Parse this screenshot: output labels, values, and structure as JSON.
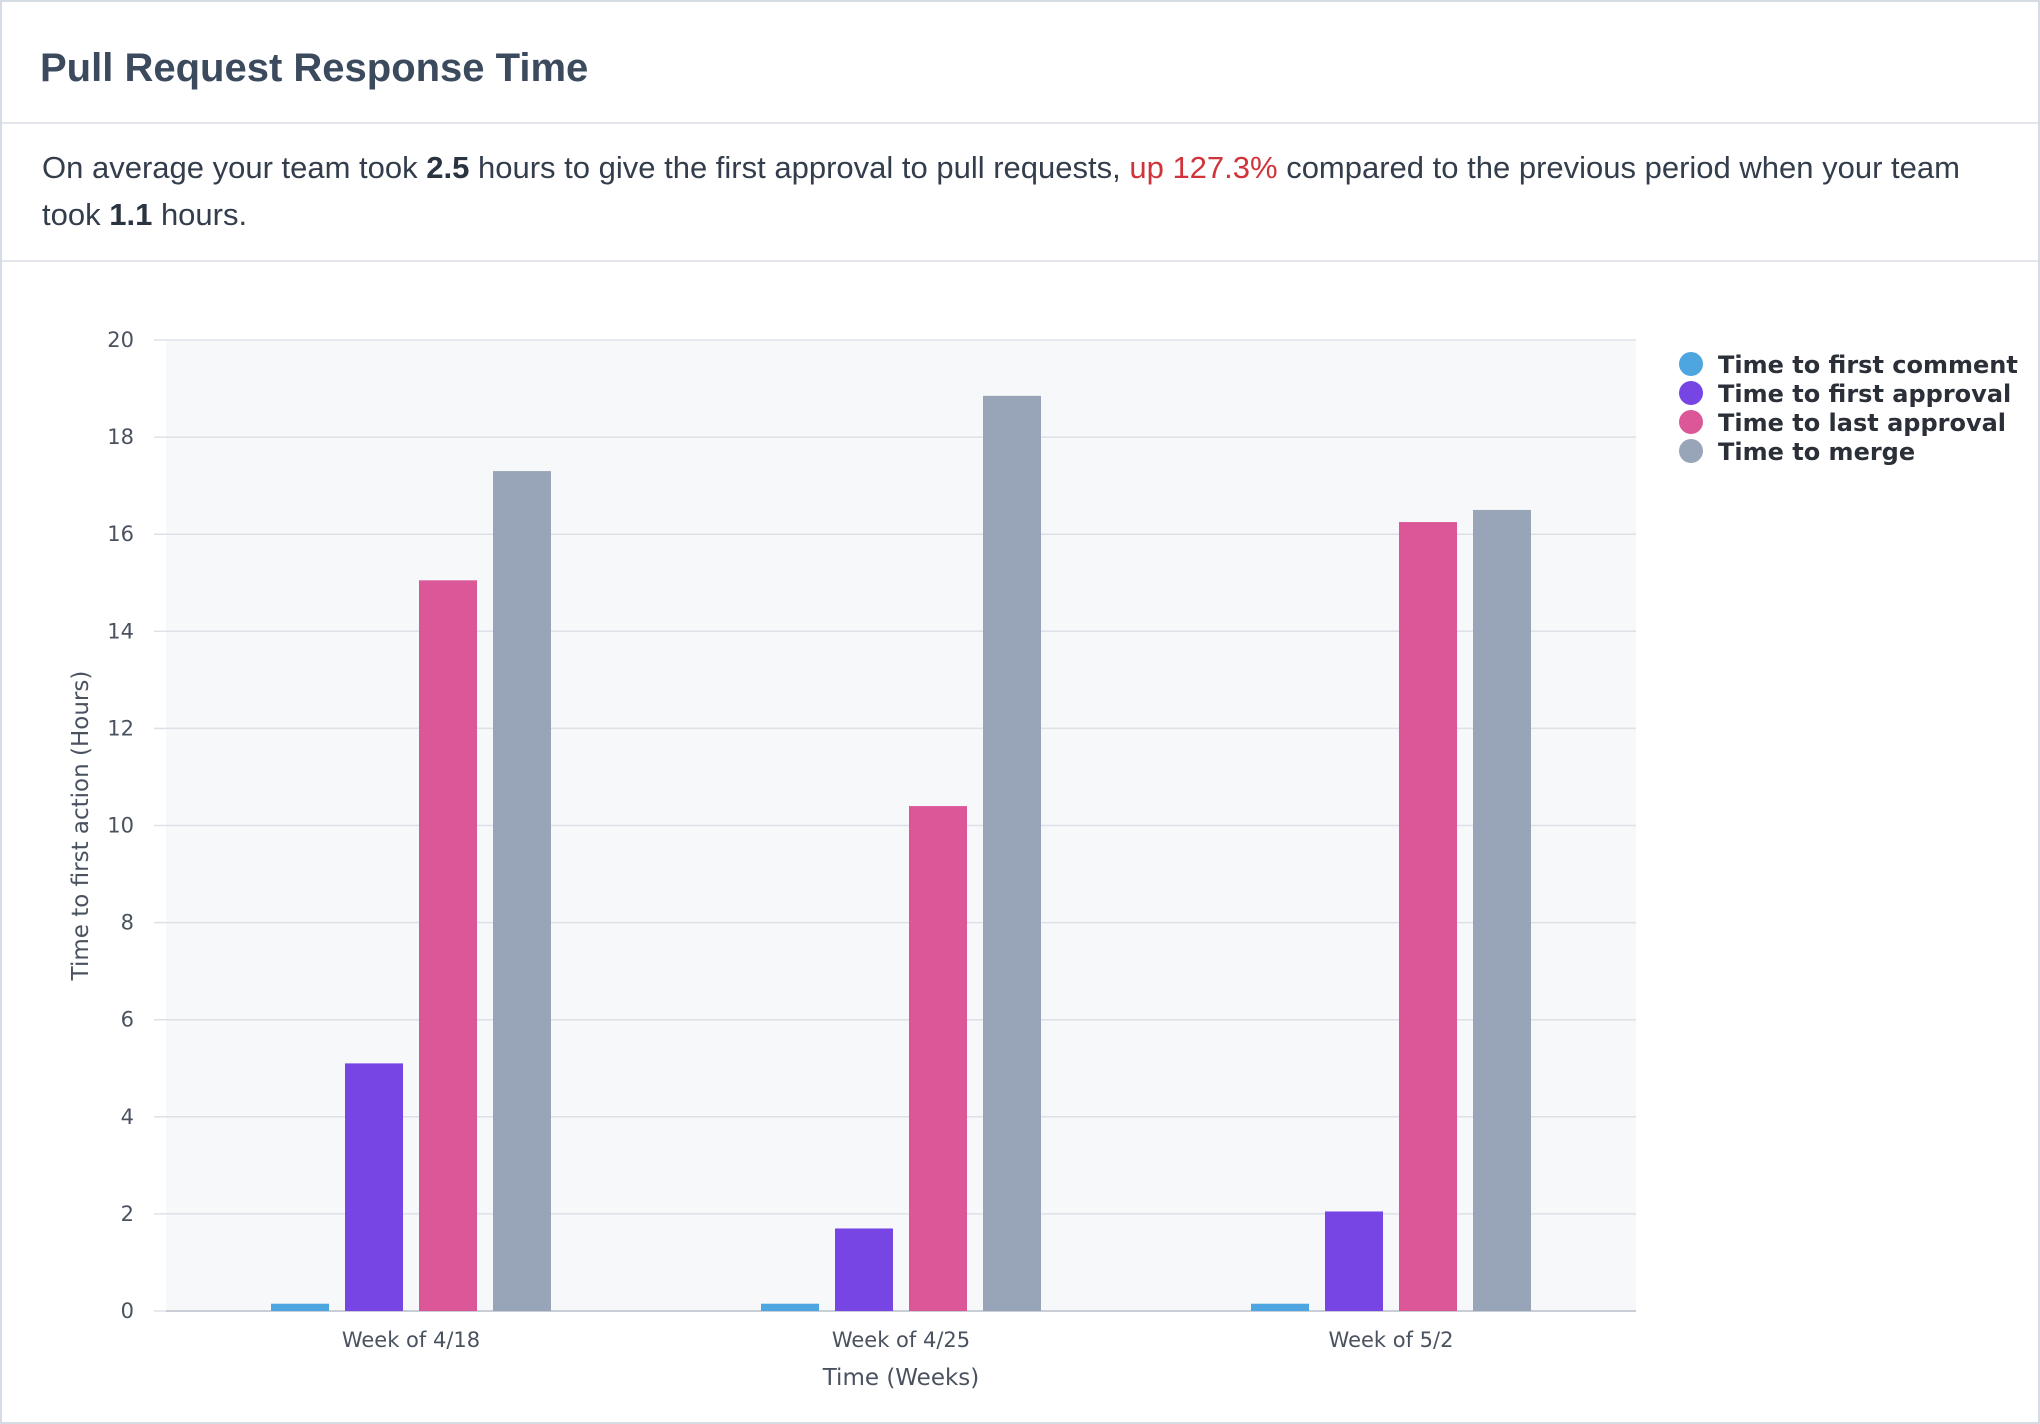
{
  "card": {
    "title": "Pull Request Response Time",
    "summary": {
      "t1": "On average your team took ",
      "current": "2.5",
      "t2": " hours to give the first approval to pull requests, ",
      "change": "up 127.3%",
      "t3": " compared to the previous period when your team took ",
      "previous": "1.1",
      "t4": " hours."
    }
  },
  "chart_data": {
    "type": "bar",
    "title": "",
    "xlabel": "Time (Weeks)",
    "ylabel": "Time to first action (Hours)",
    "ylim": [
      0,
      20
    ],
    "yticks": [
      0,
      2,
      4,
      6,
      8,
      10,
      12,
      14,
      16,
      18,
      20
    ],
    "grid": true,
    "legend_position": "top-right",
    "categories": [
      "Week of 4/18",
      "Week of 4/25",
      "Week of 5/2"
    ],
    "series": [
      {
        "name": "Time to first comment",
        "color": "#4ea6e0",
        "values": [
          0.15,
          0.15,
          0.15
        ]
      },
      {
        "name": "Time to first approval",
        "color": "#7645e3",
        "values": [
          5.1,
          1.7,
          2.05
        ]
      },
      {
        "name": "Time to last approval",
        "color": "#db5798",
        "values": [
          15.05,
          10.4,
          16.25
        ]
      },
      {
        "name": "Time to merge",
        "color": "#98a4b7",
        "values": [
          17.3,
          18.85,
          16.5
        ]
      }
    ]
  }
}
